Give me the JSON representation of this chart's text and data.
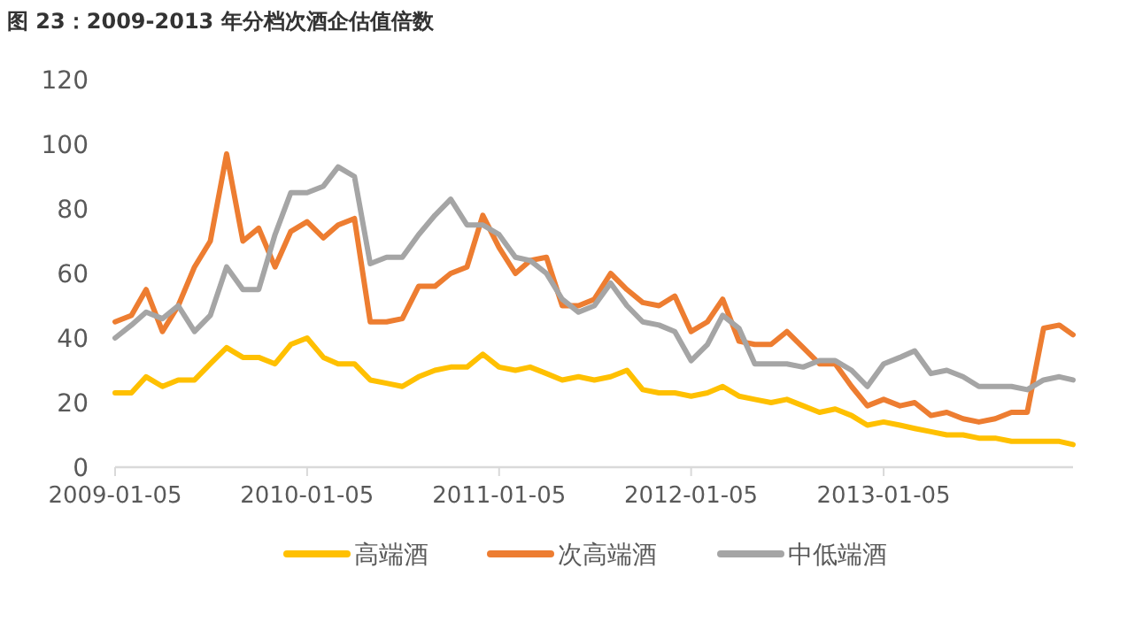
{
  "chart_data": {
    "type": "line",
    "title": "图 23：2009-2013 年分档次酒企估值倍数",
    "x": [
      "2009-01-05",
      "2009-02-05",
      "2009-03-05",
      "2009-04-05",
      "2009-05-05",
      "2009-06-05",
      "2009-07-05",
      "2009-08-05",
      "2009-09-05",
      "2009-10-05",
      "2009-11-05",
      "2009-12-05",
      "2010-01-05",
      "2010-02-05",
      "2010-03-05",
      "2010-04-05",
      "2010-05-05",
      "2010-06-05",
      "2010-07-05",
      "2010-08-05",
      "2010-09-05",
      "2010-10-05",
      "2010-11-05",
      "2010-12-05",
      "2011-01-05",
      "2011-02-05",
      "2011-03-05",
      "2011-04-05",
      "2011-05-05",
      "2011-06-05",
      "2011-07-05",
      "2011-08-05",
      "2011-09-05",
      "2011-10-05",
      "2011-11-05",
      "2011-12-05",
      "2012-01-05",
      "2012-02-05",
      "2012-03-05",
      "2012-04-05",
      "2012-05-05",
      "2012-06-05",
      "2012-07-05",
      "2012-08-05",
      "2012-09-05",
      "2012-10-05",
      "2012-11-05",
      "2012-12-05",
      "2013-01-05",
      "2013-02-05",
      "2013-03-05",
      "2013-04-05",
      "2013-05-05",
      "2013-06-05",
      "2013-07-05",
      "2013-08-05",
      "2013-09-05",
      "2013-10-05",
      "2013-11-05",
      "2013-12-05",
      "2013-12-31"
    ],
    "xlim": [
      "2009-01-05",
      "2013-12-31"
    ],
    "xticks": [
      "2009-01-05",
      "2010-01-05",
      "2011-01-05",
      "2012-01-05",
      "2013-01-05"
    ],
    "ylim": [
      0,
      120
    ],
    "yticks": [
      0,
      20,
      40,
      60,
      80,
      100,
      120
    ],
    "legend": "bottom",
    "series": [
      {
        "name": "高端酒",
        "color": "#ffc000",
        "values": [
          23,
          23,
          28,
          25,
          27,
          27,
          32,
          37,
          34,
          34,
          32,
          38,
          40,
          34,
          32,
          32,
          27,
          26,
          25,
          28,
          30,
          31,
          31,
          35,
          31,
          30,
          31,
          29,
          27,
          28,
          27,
          28,
          30,
          24,
          23,
          23,
          22,
          23,
          25,
          22,
          21,
          20,
          21,
          19,
          17,
          18,
          16,
          13,
          14,
          13,
          12,
          11,
          10,
          10,
          9,
          9,
          8,
          8,
          8,
          8,
          7
        ]
      },
      {
        "name": "次高端酒",
        "color": "#ed7d31",
        "values": [
          45,
          47,
          55,
          42,
          50,
          62,
          70,
          97,
          70,
          74,
          62,
          73,
          76,
          71,
          75,
          77,
          45,
          45,
          46,
          56,
          56,
          60,
          62,
          78,
          68,
          60,
          64,
          65,
          50,
          50,
          52,
          60,
          55,
          51,
          50,
          53,
          42,
          45,
          52,
          39,
          38,
          38,
          42,
          37,
          32,
          32,
          25,
          19,
          21,
          19,
          20,
          16,
          17,
          15,
          14,
          15,
          17,
          17,
          43,
          44,
          41
        ]
      },
      {
        "name": "中低端酒",
        "color": "#a5a5a5",
        "values": [
          40,
          44,
          48,
          46,
          50,
          42,
          47,
          62,
          55,
          55,
          72,
          85,
          85,
          87,
          93,
          90,
          63,
          65,
          65,
          72,
          78,
          83,
          75,
          75,
          72,
          65,
          64,
          60,
          52,
          48,
          50,
          57,
          50,
          45,
          44,
          42,
          33,
          38,
          47,
          43,
          32,
          32,
          32,
          31,
          33,
          33,
          30,
          25,
          32,
          34,
          36,
          29,
          30,
          28,
          25,
          25,
          25,
          24,
          27,
          28,
          27
        ]
      }
    ]
  }
}
